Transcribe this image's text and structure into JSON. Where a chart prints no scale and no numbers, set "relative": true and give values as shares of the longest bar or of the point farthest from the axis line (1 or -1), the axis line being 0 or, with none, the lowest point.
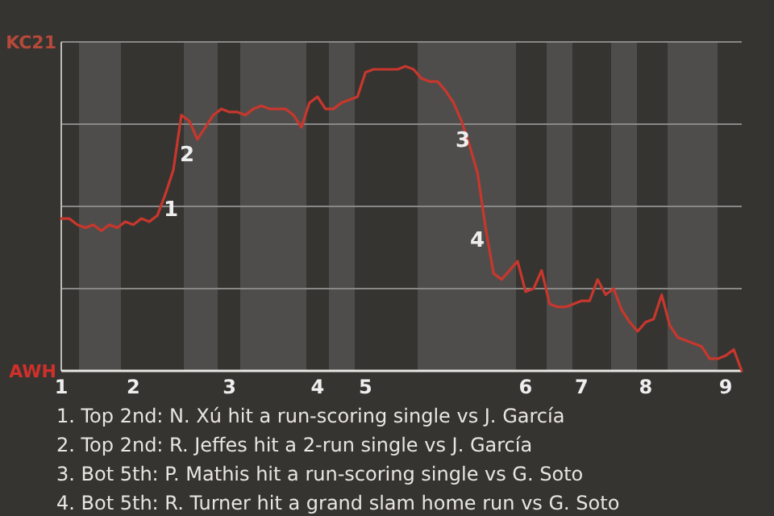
{
  "chart_data": {
    "type": "line",
    "relative": true,
    "categories": [
      "1",
      null,
      null,
      null,
      null,
      null,
      null,
      null,
      null,
      "2",
      null,
      null,
      null,
      null,
      null,
      null,
      null,
      null,
      null,
      null,
      null,
      "3",
      null,
      null,
      null,
      null,
      null,
      null,
      null,
      null,
      null,
      null,
      "4",
      null,
      null,
      null,
      null,
      null,
      "5",
      null,
      null,
      null,
      null,
      null,
      null,
      null,
      null,
      null,
      null,
      null,
      null,
      null,
      null,
      null,
      null,
      null,
      null,
      null,
      "6",
      null,
      null,
      null,
      null,
      null,
      null,
      "7",
      null,
      null,
      null,
      null,
      null,
      null,
      null,
      "8",
      null,
      null,
      null,
      null,
      null,
      null,
      null,
      null,
      null,
      "9",
      null,
      null
    ],
    "series": [
      {
        "color": "#c8372d",
        "values": [
          0.5,
          0.5,
          0.48,
          0.47,
          0.48,
          0.46,
          0.48,
          0.47,
          0.49,
          0.48,
          0.5,
          0.49,
          0.51,
          0.58,
          0.66,
          0.84,
          0.82,
          0.76,
          0.8,
          0.84,
          0.86,
          0.85,
          0.85,
          0.84,
          0.86,
          0.87,
          0.86,
          0.86,
          0.86,
          0.84,
          0.8,
          0.88,
          0.9,
          0.86,
          0.86,
          0.88,
          0.89,
          0.9,
          0.98,
          0.99,
          0.99,
          0.99,
          0.99,
          1,
          0.99,
          0.96,
          0.95,
          0.95,
          0.92,
          0.88,
          0.82,
          0.74,
          0.65,
          0.47,
          0.32,
          0.3,
          0.33,
          0.36,
          0.26,
          0.27,
          0.33,
          0.22,
          0.21,
          0.21,
          0.22,
          0.23,
          0.23,
          0.3,
          0.25,
          0.27,
          0.2,
          0.16,
          0.13,
          0.16,
          0.17,
          0.25,
          0.15,
          0.11,
          0.1,
          0.09,
          0.08,
          0.04,
          0.04,
          0.05,
          0.07,
          0
        ]
      }
    ],
    "grid": "y",
    "marker": "none",
    "line_style": "solid",
    "annotations": [
      "KC21",
      "AWH",
      "1",
      "2",
      "3",
      "4",
      "1. Top 2nd: N. Xú hit a run-scoring single vs J. García",
      "2. Top 2nd: R. Jeffes hit a 2-run single vs J. García",
      "3. Bot 5th: P. Mathis hit a run-scoring single vs G. Soto",
      "4. Bot 5th: R. Turner hit a grand slam home run vs G. Soto"
    ]
  }
}
